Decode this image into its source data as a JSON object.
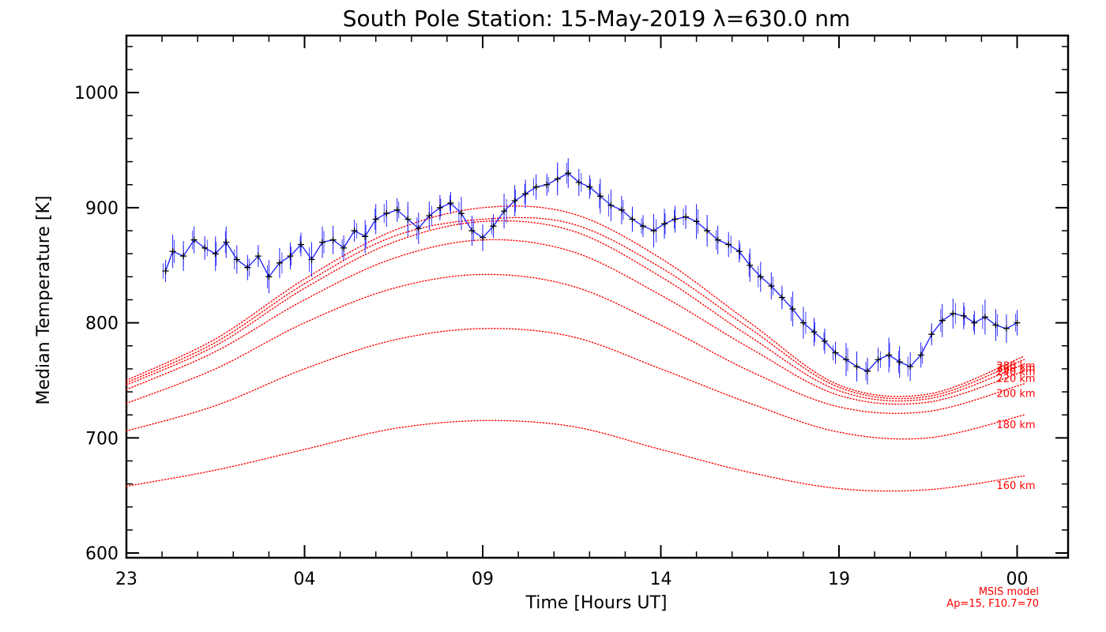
{
  "chart_data": {
    "type": "line",
    "title": "South Pole Station: 15-May-2019 λ=630.0 nm",
    "xlabel": "Time [Hours UT]",
    "ylabel": "Median Temperature [K]",
    "x_range_hours": [
      23,
      48.2
    ],
    "ylim": [
      595,
      1050
    ],
    "x_ticks": [
      {
        "hour": 23,
        "label": "23"
      },
      {
        "hour": 28,
        "label": "04"
      },
      {
        "hour": 33,
        "label": "09"
      },
      {
        "hour": 38,
        "label": "14"
      },
      {
        "hour": 43,
        "label": "19"
      },
      {
        "hour": 48,
        "label": "00"
      }
    ],
    "y_ticks": [
      600,
      700,
      800,
      900,
      1000
    ],
    "colors": {
      "observed_line": "#1a1aff",
      "observed_marker": "#000000",
      "model": "#ff0000"
    },
    "observed": {
      "name": "Median Temperature",
      "hours": [
        24.1,
        24.3,
        24.6,
        24.9,
        25.2,
        25.5,
        25.8,
        26.1,
        26.4,
        26.7,
        27.0,
        27.3,
        27.6,
        27.9,
        28.2,
        28.5,
        28.8,
        29.1,
        29.4,
        29.7,
        30.0,
        30.3,
        30.6,
        30.9,
        31.2,
        31.5,
        31.8,
        32.1,
        32.4,
        32.7,
        33.0,
        33.3,
        33.6,
        33.9,
        34.2,
        34.5,
        34.8,
        35.1,
        35.4,
        35.7,
        36.0,
        36.3,
        36.6,
        36.9,
        37.2,
        37.5,
        37.8,
        38.1,
        38.4,
        38.7,
        39.0,
        39.3,
        39.6,
        39.9,
        40.2,
        40.5,
        40.8,
        41.1,
        41.4,
        41.7,
        42.0,
        42.3,
        42.6,
        42.9,
        43.2,
        43.5,
        43.8,
        44.1,
        44.4,
        44.7,
        45.0,
        45.3,
        45.6,
        45.9,
        46.2,
        46.5,
        46.8,
        47.1,
        47.4,
        47.7,
        48.0
      ],
      "values": [
        845,
        862,
        858,
        872,
        865,
        860,
        870,
        855,
        848,
        858,
        840,
        852,
        858,
        868,
        855,
        870,
        872,
        865,
        880,
        875,
        890,
        895,
        898,
        890,
        882,
        893,
        900,
        904,
        895,
        880,
        874,
        884,
        897,
        906,
        912,
        918,
        920,
        925,
        930,
        922,
        918,
        910,
        902,
        898,
        890,
        884,
        880,
        886,
        890,
        892,
        888,
        880,
        872,
        868,
        862,
        850,
        840,
        832,
        822,
        812,
        800,
        792,
        784,
        774,
        768,
        762,
        758,
        768,
        772,
        766,
        762,
        772,
        790,
        802,
        808,
        806,
        800,
        805,
        798,
        795,
        800
      ]
    },
    "model_series": [
      {
        "label": "160 km",
        "hours": [
          23.0,
          25.5,
          28.0,
          30.5,
          33.0,
          35.5,
          38.0,
          40.5,
          43.0,
          45.5,
          48.2
        ],
        "values": [
          658,
          672,
          690,
          708,
          715,
          710,
          690,
          670,
          656,
          655,
          667
        ]
      },
      {
        "label": "180 km",
        "hours": [
          23.0,
          25.5,
          28.0,
          30.5,
          33.0,
          35.5,
          38.0,
          40.5,
          43.0,
          45.5,
          48.2
        ],
        "values": [
          706,
          728,
          760,
          785,
          795,
          788,
          760,
          730,
          705,
          700,
          720
        ]
      },
      {
        "label": "200 km",
        "hours": [
          23.0,
          25.5,
          28.0,
          30.5,
          33.0,
          35.5,
          38.0,
          40.5,
          43.0,
          45.5,
          48.2
        ],
        "values": [
          730,
          760,
          800,
          830,
          842,
          832,
          798,
          758,
          727,
          723,
          747
        ]
      },
      {
        "label": "220 km",
        "hours": [
          23.0,
          25.5,
          28.0,
          30.5,
          33.0,
          35.5,
          38.0,
          40.5,
          43.0,
          45.5,
          48.2
        ],
        "values": [
          742,
          775,
          820,
          856,
          872,
          862,
          824,
          778,
          737,
          731,
          758
        ]
      },
      {
        "label": "240 km",
        "hours": [
          23.0,
          25.5,
          28.0,
          30.5,
          33.0,
          35.5,
          38.0,
          40.5,
          43.0,
          45.5,
          48.2
        ],
        "values": [
          746,
          780,
          830,
          870,
          888,
          880,
          840,
          788,
          741,
          734,
          764
        ]
      },
      {
        "label": "260 km",
        "hours": [
          23.0,
          25.5,
          28.0,
          30.5,
          33.0,
          35.5,
          38.0,
          40.5,
          43.0,
          45.5,
          48.2
        ],
        "values": [
          748,
          783,
          834,
          875,
          890,
          886,
          848,
          795,
          744,
          736,
          768
        ]
      },
      {
        "label": "280 km",
        "hours": [
          23.0,
          25.5,
          28.0,
          30.5,
          33.0,
          35.5,
          38.0,
          40.5,
          43.0,
          45.5,
          48.2
        ],
        "values": [
          750,
          786,
          838,
          880,
          900,
          895,
          856,
          800,
          746,
          738,
          771
        ]
      }
    ],
    "model_labels": [
      {
        "text": "280 km",
        "value": 763
      },
      {
        "text": "260 km",
        "value": 761
      },
      {
        "text": "240 km",
        "value": 758
      },
      {
        "text": "220 km",
        "value": 752
      },
      {
        "text": "200 km",
        "value": 739
      },
      {
        "text": "180 km",
        "value": 712
      },
      {
        "text": "160 km",
        "value": 659
      }
    ],
    "annotation": {
      "line1": "MSIS model",
      "line2": "Ap=15, F10.7=70"
    }
  }
}
